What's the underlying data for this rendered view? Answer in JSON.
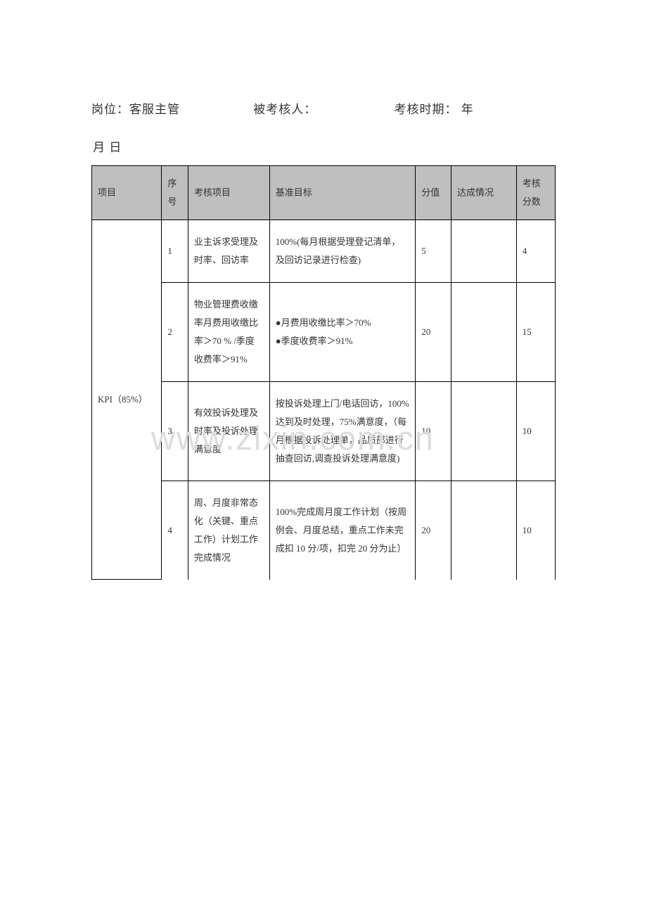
{
  "header": {
    "position_label": "岗位：客服主管",
    "assessed_label": "被考核人：",
    "period_label": "考核时期：    年",
    "line2": "月     日"
  },
  "columns": {
    "project": "项目",
    "seq": "序号",
    "item": "考核项目",
    "target": "基准目标",
    "score": "分值",
    "attain": "达成情况",
    "result": "考核分数"
  },
  "group_label": "KPI（85%）",
  "rows": [
    {
      "seq": "1",
      "item": "业主诉求受理及时率、回访率",
      "target": "100%(每月根据受理登记清单，及回访记录进行检查)",
      "score": "5",
      "attain": "",
      "result": "4"
    },
    {
      "seq": "2",
      "item": "物业管理费收缴率月费用收缴比率＞70 % /季度收费率＞91%",
      "target": "●月费用收缴比率＞70%\n●季度收费率＞91%",
      "score": "20",
      "attain": "",
      "result": "15"
    },
    {
      "seq": "3",
      "item": "有效投诉处理及时率及投诉处理满意度",
      "target": "按投诉处理上门/电话回访，100%达到及时处理，75%满意度，（每月根据投诉处理单，品质部进行抽查回访,调查投诉处理满意度)",
      "score": "10",
      "attain": "",
      "result": "10"
    },
    {
      "seq": "4",
      "item": "周、月度非常态化（关键、重点工作）计划工作完成情况",
      "target": "100%完成周月度工作计划（按周例会、月度总结，重点工作未完成扣 10 分/项，扣完 20 分为止）",
      "score": "20",
      "attain": "",
      "result": "10"
    }
  ],
  "watermark": "www.zixin.com.cn"
}
